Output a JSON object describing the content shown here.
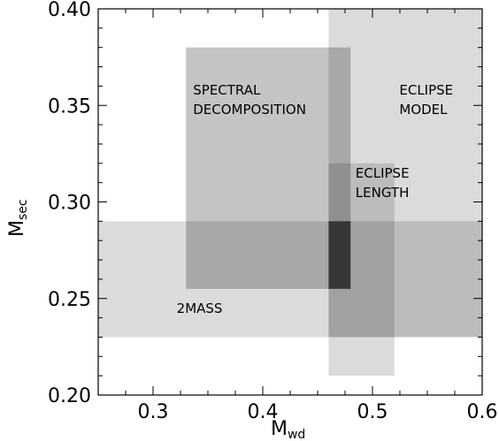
{
  "chart_data": {
    "type": "region",
    "xlabel": "M",
    "xlabel_sub": "wd",
    "ylabel": "M",
    "ylabel_sub": "sec",
    "xlim": [
      0.25,
      0.6
    ],
    "ylim": [
      0.2,
      0.4
    ],
    "x_ticks": [
      {
        "value": 0.3,
        "label": "0.3"
      },
      {
        "value": 0.4,
        "label": "0.4"
      },
      {
        "value": 0.5,
        "label": "0.5"
      },
      {
        "value": 0.6,
        "label": "0.6"
      }
    ],
    "y_ticks": [
      {
        "value": 0.2,
        "label": "0.20"
      },
      {
        "value": 0.25,
        "label": "0.25"
      },
      {
        "value": 0.3,
        "label": "0.30"
      },
      {
        "value": 0.35,
        "label": "0.35"
      },
      {
        "value": 0.4,
        "label": "0.40"
      }
    ],
    "x_minor_step": 0.025,
    "y_minor_step": 0.01,
    "regions": [
      {
        "name": "2MASS",
        "x": [
          0.25,
          0.6
        ],
        "y": [
          0.23,
          0.29
        ],
        "color": "#000000",
        "opacity": 0.14
      },
      {
        "name": "ECLIPSE MODEL",
        "x": [
          0.46,
          0.6
        ],
        "y": [
          0.23,
          0.4
        ],
        "color": "#000000",
        "opacity": 0.14
      },
      {
        "name": "ECLIPSE LENGTH",
        "x": [
          0.46,
          0.52
        ],
        "y": [
          0.21,
          0.32
        ],
        "color": "#000000",
        "opacity": 0.14
      },
      {
        "name": "SPECTRAL DECOMPOSITION",
        "x": [
          0.33,
          0.48
        ],
        "y": [
          0.255,
          0.38
        ],
        "color": "#000000",
        "opacity": 0.23
      },
      {
        "name": "overlap",
        "x": [
          0.46,
          0.48
        ],
        "y": [
          0.255,
          0.29
        ],
        "color": "#000000",
        "opacity": 0.55
      }
    ],
    "labels": [
      {
        "lines": [
          "SPECTRAL",
          "DECOMPOSITION"
        ],
        "x": 0.3365,
        "y": 0.3555
      },
      {
        "lines": [
          "ECLIPSE",
          "MODEL"
        ],
        "x": 0.5245,
        "y": 0.3555
      },
      {
        "lines": [
          "ECLIPSE",
          "LENGTH"
        ],
        "x": 0.4845,
        "y": 0.3125
      },
      {
        "lines": [
          "2MASS"
        ],
        "x": 0.3215,
        "y": 0.2425
      }
    ]
  }
}
